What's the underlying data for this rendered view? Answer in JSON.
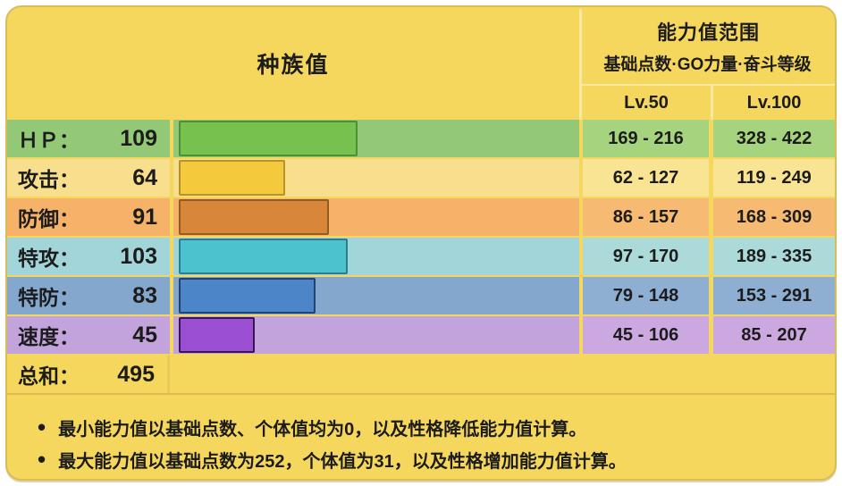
{
  "header": {
    "left_title": "种族值",
    "right_title": "能力值范围",
    "right_subtitle": "基础点数·GO力量·奋斗等级",
    "col_lv50": "Lv.50",
    "col_lv100": "Lv.100"
  },
  "stats": {
    "max": 255,
    "rows": [
      {
        "key": "hp",
        "label": "ＨＰ：",
        "value": "109",
        "lv50": "169 - 216",
        "lv100": "328 - 422",
        "row_bg": "#93C877",
        "cell_bg": "#A5D37E",
        "bar_fill": "#77C14F",
        "bar_border": "#4E8F33"
      },
      {
        "key": "attack",
        "label": "攻击：",
        "value": "64",
        "lv50": "62 - 127",
        "lv100": "119 - 249",
        "row_bg": "#F8DF8D",
        "cell_bg": "#F9E494",
        "bar_fill": "#F5C93C",
        "bar_border": "#B5922B"
      },
      {
        "key": "defense",
        "label": "防御：",
        "value": "91",
        "lv50": "86 - 157",
        "lv100": "168 - 309",
        "row_bg": "#F5B268",
        "cell_bg": "#F6BA73",
        "bar_fill": "#D8873A",
        "bar_border": "#8F5C22"
      },
      {
        "key": "sp-attack",
        "label": "特攻：",
        "value": "103",
        "lv50": "97 - 170",
        "lv100": "189 - 335",
        "row_bg": "#A2D5DA",
        "cell_bg": "#ABDAD9",
        "bar_fill": "#4CC2CF",
        "bar_border": "#2B7F8C"
      },
      {
        "key": "sp-defense",
        "label": "特防：",
        "value": "83",
        "lv50": "79 - 148",
        "lv100": "153 - 291",
        "row_bg": "#84A7CE",
        "cell_bg": "#8EAED2",
        "bar_fill": "#4C86C8",
        "bar_border": "#24416F"
      },
      {
        "key": "speed",
        "label": "速度：",
        "value": "45",
        "lv50": "45 - 106",
        "lv100": "85 - 207",
        "row_bg": "#C2A3DC",
        "cell_bg": "#CBA9E0",
        "bar_fill": "#9B4FD2",
        "bar_border": "#381653"
      }
    ],
    "total_label": "总和：",
    "total_value": "495"
  },
  "notes": {
    "bullet": "•",
    "items": [
      "最小能力值以基础点数、个体值均为0，以及性格降低能力值计算。",
      "最大能力值以基础点数为252，个体值为31，以及性格增加能力值计算。"
    ]
  },
  "colors": {
    "page_bg": "#FFFFFF",
    "card_bg": "#F6D75E",
    "card_border": "#D9BC55",
    "header_divider": "#FBE9A2",
    "total_rule": "#DFB94E",
    "text": "#1C1C1C"
  },
  "chart_data": {
    "type": "bar",
    "title": "种族值",
    "categories": [
      "ＨＰ",
      "攻击",
      "防御",
      "特攻",
      "特防",
      "速度"
    ],
    "values": [
      109,
      64,
      91,
      103,
      83,
      45
    ],
    "total": 495,
    "xlim": [
      0,
      255
    ],
    "legend": [
      "Lv.50",
      "Lv.100"
    ],
    "ranges_lv50": [
      [
        169,
        216
      ],
      [
        62,
        127
      ],
      [
        86,
        157
      ],
      [
        97,
        170
      ],
      [
        79,
        148
      ],
      [
        45,
        106
      ]
    ],
    "ranges_lv100": [
      [
        328,
        422
      ],
      [
        119,
        249
      ],
      [
        168,
        309
      ],
      [
        189,
        335
      ],
      [
        153,
        291
      ],
      [
        85,
        207
      ]
    ],
    "bar_colors": [
      "#77C14F",
      "#F5C93C",
      "#D8873A",
      "#4CC2CF",
      "#4C86C8",
      "#9B4FD2"
    ]
  }
}
